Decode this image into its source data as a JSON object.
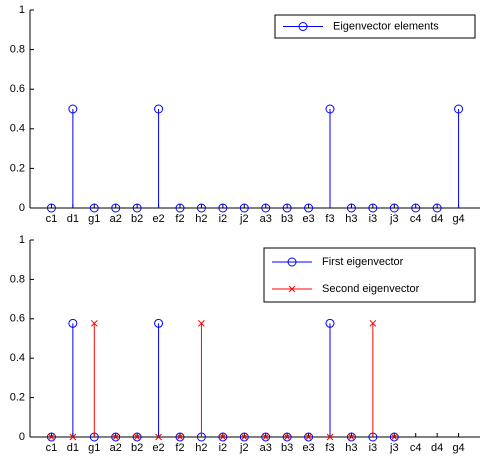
{
  "chart_data": [
    {
      "type": "stem",
      "categories": [
        "c1",
        "d1",
        "g1",
        "a2",
        "b2",
        "e2",
        "f2",
        "h2",
        "i2",
        "j2",
        "a3",
        "b3",
        "e3",
        "f3",
        "h3",
        "i3",
        "j3",
        "c4",
        "d4",
        "g4"
      ],
      "series": [
        {
          "name": "Eigenvector elements",
          "color": "#0000ff",
          "marker": "o",
          "values": [
            0,
            0.5,
            0,
            0,
            0,
            0.5,
            0,
            0,
            0,
            0,
            0,
            0,
            0,
            0.5,
            0,
            0,
            0,
            0,
            0,
            0.5
          ]
        }
      ],
      "xlim": [
        0,
        21
      ],
      "ylim": [
        0,
        1
      ],
      "yticks": [
        0,
        0.2,
        0.4,
        0.6,
        0.8,
        1
      ],
      "legend": "upper right"
    },
    {
      "type": "stem",
      "categories": [
        "c1",
        "d1",
        "g1",
        "a2",
        "b2",
        "e2",
        "f2",
        "h2",
        "i2",
        "j2",
        "a3",
        "b3",
        "e3",
        "f3",
        "h3",
        "i3",
        "j3",
        "c4",
        "d4",
        "g4"
      ],
      "series": [
        {
          "name": "First eigenvector",
          "color": "#0000ff",
          "marker": "o",
          "values": [
            0,
            0.577,
            0,
            0,
            0,
            0.577,
            0,
            0,
            0,
            0,
            0,
            0,
            0,
            0.577,
            0,
            0,
            0,
            null,
            null,
            null
          ]
        },
        {
          "name": "Second eigenvector",
          "color": "#ff0000",
          "marker": "x",
          "values": [
            0,
            0,
            0.577,
            0,
            0,
            0,
            0,
            0.577,
            0,
            0,
            0,
            0,
            0,
            0,
            0,
            0.577,
            0,
            null,
            null,
            null
          ]
        }
      ],
      "xlim": [
        0,
        21
      ],
      "ylim": [
        0,
        1
      ],
      "yticks": [
        0,
        0.2,
        0.4,
        0.6,
        0.8,
        1
      ],
      "legend": "upper right"
    }
  ]
}
